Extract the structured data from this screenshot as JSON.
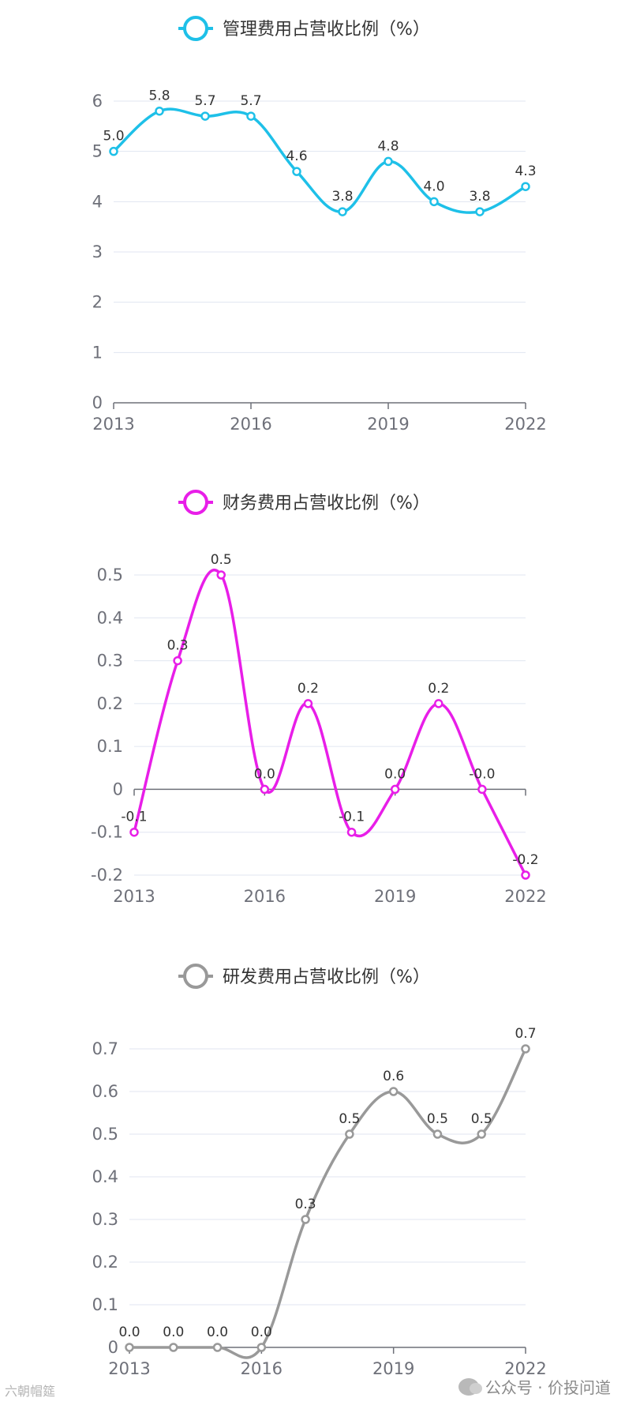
{
  "chart_data": [
    {
      "type": "line",
      "title": "管理费用占营收比例（%）",
      "color": "#1ec0e8",
      "x": [
        "2013",
        "2014",
        "2015",
        "2016",
        "2017",
        "2018",
        "2019",
        "2020",
        "2021",
        "2022"
      ],
      "x_tick_labels": [
        "2013",
        "2016",
        "2019",
        "2022"
      ],
      "series": [
        {
          "name": "管理费用占营收比例（%）",
          "values": [
            5.0,
            5.8,
            5.7,
            5.7,
            4.6,
            3.8,
            4.8,
            4.0,
            3.8,
            4.3
          ]
        }
      ],
      "data_labels": [
        "5.0",
        "5.8",
        "5.7",
        "5.7",
        "4.6",
        "3.8",
        "4.8",
        "4.0",
        "3.8",
        "4.3"
      ],
      "ylim": [
        0,
        6
      ],
      "y_ticks": [
        0,
        1,
        2,
        3,
        4,
        5,
        6
      ],
      "y_tick_labels": [
        "0",
        "1",
        "2",
        "3",
        "4",
        "5",
        "6"
      ],
      "smooth": true,
      "grid": true,
      "legend": "top-center"
    },
    {
      "type": "line",
      "title": "财务费用占营收比例（%）",
      "color": "#e81ee8",
      "x": [
        "2013",
        "2014",
        "2015",
        "2016",
        "2017",
        "2018",
        "2019",
        "2020",
        "2021",
        "2022"
      ],
      "x_tick_labels": [
        "2013",
        "2016",
        "2019",
        "2022"
      ],
      "series": [
        {
          "name": "财务费用占营收比例（%）",
          "values": [
            -0.1,
            0.3,
            0.5,
            0.0,
            0.2,
            -0.1,
            0.0,
            0.2,
            0.0,
            -0.2
          ]
        }
      ],
      "data_labels": [
        "-0.1",
        "0.3",
        "0.5",
        "0.0",
        "0.2",
        "-0.1",
        "0.0",
        "0.2",
        "-0.0",
        "-0.2"
      ],
      "ylim": [
        -0.2,
        0.5
      ],
      "y_ticks": [
        -0.2,
        -0.1,
        0,
        0.1,
        0.2,
        0.3,
        0.4,
        0.5
      ],
      "y_tick_labels": [
        "-0.2",
        "-0.1",
        "0",
        "0.1",
        "0.2",
        "0.3",
        "0.4",
        "0.5"
      ],
      "smooth": true,
      "grid": true,
      "legend": "top-center"
    },
    {
      "type": "line",
      "title": "研发费用占营收比例（%）",
      "color": "#999999",
      "x": [
        "2013",
        "2014",
        "2015",
        "2016",
        "2017",
        "2018",
        "2019",
        "2020",
        "2021",
        "2022"
      ],
      "x_tick_labels": [
        "2013",
        "2016",
        "2019",
        "2022"
      ],
      "series": [
        {
          "name": "研发费用占营收比例（%）",
          "values": [
            0.0,
            0.0,
            0.0,
            0.0,
            0.3,
            0.5,
            0.6,
            0.5,
            0.5,
            0.7
          ]
        }
      ],
      "data_labels": [
        "0.0",
        "0.0",
        "0.0",
        "0.0",
        "0.3",
        "0.5",
        "0.6",
        "0.5",
        "0.5",
        "0.7"
      ],
      "ylim": [
        0,
        0.7
      ],
      "y_ticks": [
        0,
        0.1,
        0.2,
        0.3,
        0.4,
        0.5,
        0.6,
        0.7
      ],
      "y_tick_labels": [
        "0",
        "0.1",
        "0.2",
        "0.3",
        "0.4",
        "0.5",
        "0.6",
        "0.7"
      ],
      "smooth": true,
      "grid": true,
      "legend": "top-center"
    }
  ],
  "watermark": {
    "text": "公众号 · 价投问道",
    "left_text": "六朝帽筵"
  }
}
